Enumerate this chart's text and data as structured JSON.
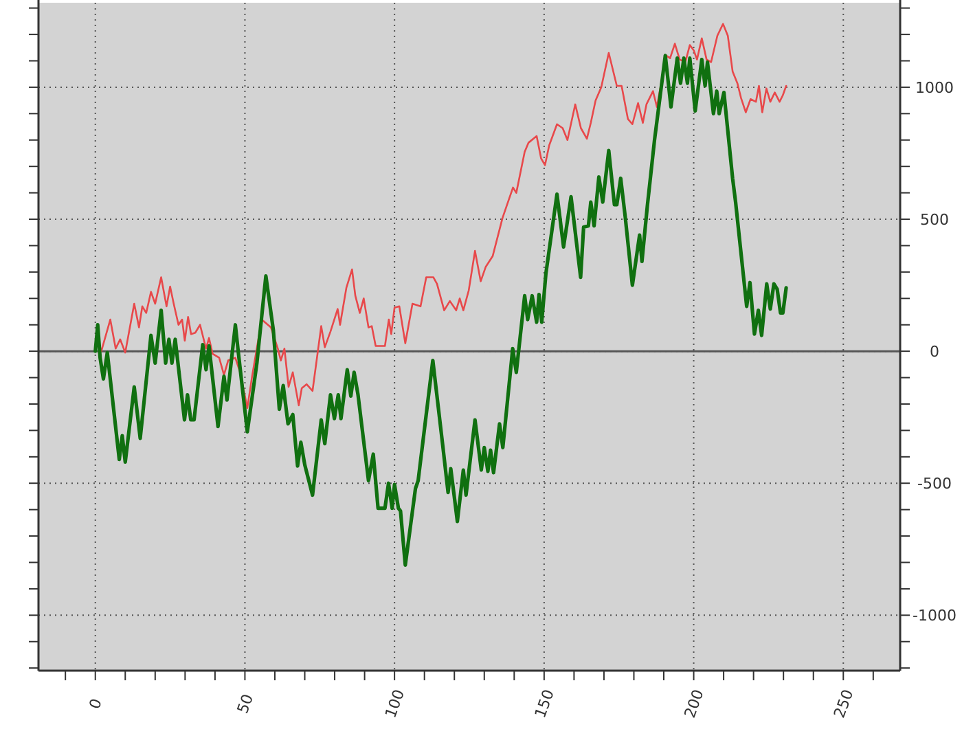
{
  "chart_data": {
    "type": "line",
    "xlim": [
      -19,
      269
    ],
    "ylim": [
      -1210,
      1320
    ],
    "xticks": [
      {
        "value": -10,
        "label": null
      },
      0,
      {
        "value": 10,
        "label": null
      },
      {
        "value": 20,
        "label": null
      },
      {
        "value": 30,
        "label": null
      },
      {
        "value": 40,
        "label": null
      },
      50,
      {
        "value": 60,
        "label": null
      },
      {
        "value": 70,
        "label": null
      },
      {
        "value": 80,
        "label": null
      },
      {
        "value": 90,
        "label": null
      },
      100,
      {
        "value": 110,
        "label": null
      },
      {
        "value": 120,
        "label": null
      },
      {
        "value": 130,
        "label": null
      },
      {
        "value": 140,
        "label": null
      },
      150,
      {
        "value": 160,
        "label": null
      },
      {
        "value": 170,
        "label": null
      },
      {
        "value": 180,
        "label": null
      },
      {
        "value": 190,
        "label": null
      },
      200,
      {
        "value": 210,
        "label": null
      },
      {
        "value": 220,
        "label": null
      },
      {
        "value": 230,
        "label": null
      },
      {
        "value": 240,
        "label": null
      },
      250,
      {
        "value": 260,
        "label": null
      }
    ],
    "yticks": [
      {
        "value": -1200,
        "label": null
      },
      {
        "value": -1100,
        "label": null
      },
      -1000,
      {
        "value": -900,
        "label": null
      },
      {
        "value": -800,
        "label": null
      },
      {
        "value": -700,
        "label": null
      },
      {
        "value": -600,
        "label": null
      },
      -500,
      {
        "value": -400,
        "label": null
      },
      {
        "value": -300,
        "label": null
      },
      {
        "value": -200,
        "label": null
      },
      {
        "value": -100,
        "label": null
      },
      0,
      {
        "value": 100,
        "label": null
      },
      {
        "value": 200,
        "label": null
      },
      {
        "value": 300,
        "label": null
      },
      {
        "value": 400,
        "label": null
      },
      500,
      {
        "value": 600,
        "label": null
      },
      {
        "value": 700,
        "label": null
      },
      {
        "value": 800,
        "label": null
      },
      {
        "value": 900,
        "label": null
      },
      1000,
      {
        "value": 1100,
        "label": null
      },
      {
        "value": 1200,
        "label": null
      },
      {
        "value": 1300,
        "label": null
      }
    ],
    "grid": true,
    "ref_lines": [
      {
        "axis": "y",
        "value": 0,
        "color": "#555555"
      }
    ],
    "series": [
      {
        "color": "#e8484a",
        "x": [
          0,
          0.8,
          2,
          5,
          6.8,
          8.3,
          10,
          13,
          14.6,
          15.7,
          17,
          18.6,
          20,
          22,
          23.8,
          25,
          26.2,
          27.8,
          29,
          29.9,
          31,
          32,
          33.4,
          35,
          37,
          38,
          39.2,
          41.4,
          43,
          44.4,
          46.8,
          48.4,
          50.8,
          52.4,
          55.6,
          58.7,
          61,
          62,
          63.2,
          64.6,
          66,
          68,
          69,
          70.6,
          72.6,
          75.5,
          76.7,
          78.6,
          81,
          81.8,
          83.9,
          85.8,
          86.9,
          88.4,
          89.7,
          91.3,
          92.4,
          93.7,
          96.8,
          98.1,
          98.9,
          100,
          101.6,
          103.6,
          106,
          108.7,
          110.6,
          113,
          114.2,
          116.6,
          118.5,
          120.6,
          121.8,
          123,
          124.8,
          126.9,
          128.8,
          130.5,
          132.8,
          136.1,
          139.6,
          140.7,
          143.5,
          144.8,
          147.5,
          149,
          150.3,
          151.7,
          154.3,
          156.2,
          157.8,
          160.4,
          162.3,
          164.3,
          165.6,
          167.2,
          169.1,
          171.6,
          174.3,
          175.9,
          178,
          179.5,
          181.4,
          183,
          184.2,
          186.4,
          187.7,
          190.8,
          192.1,
          193.7,
          195.3,
          197.2,
          198.7,
          200,
          201.1,
          202.7,
          204.3,
          205.8,
          207.9,
          209.8,
          211.4,
          213,
          214.6,
          215.8,
          217.4,
          219,
          220.8,
          221.8,
          222.9,
          224.3,
          225.6,
          227.1,
          228.7,
          229.8,
          230.9
        ],
        "values": [
          0,
          45,
          0,
          120,
          10,
          45,
          -5,
          180,
          90,
          170,
          145,
          225,
          180,
          280,
          170,
          245,
          180,
          100,
          120,
          40,
          130,
          65,
          70,
          100,
          10,
          50,
          -10,
          -25,
          -90,
          -35,
          -25,
          -80,
          -215,
          -95,
          120,
          90,
          10,
          -35,
          10,
          -135,
          -80,
          -205,
          -140,
          -125,
          -150,
          95,
          15,
          75,
          160,
          100,
          240,
          310,
          210,
          145,
          200,
          90,
          95,
          20,
          20,
          120,
          65,
          165,
          170,
          30,
          180,
          170,
          280,
          280,
          255,
          155,
          190,
          155,
          200,
          155,
          230,
          380,
          265,
          320,
          360,
          505,
          620,
          600,
          755,
          790,
          815,
          730,
          705,
          780,
          860,
          845,
          800,
          935,
          845,
          805,
          865,
          950,
          1000,
          1130,
          1005,
          1005,
          880,
          860,
          940,
          865,
          935,
          985,
          925,
          1120,
          1110,
          1165,
          1105,
          1095,
          1160,
          1140,
          1105,
          1185,
          1105,
          1095,
          1195,
          1240,
          1195,
          1060,
          1015,
          960,
          905,
          955,
          945,
          1005,
          905,
          995,
          945,
          980,
          945,
          970,
          1005
        ]
      },
      {
        "color": "#107010",
        "x": [
          0,
          0.8,
          1.6,
          2.7,
          4,
          8,
          9,
          10,
          13,
          15,
          18.6,
          20,
          22,
          23.5,
          24.6,
          25.6,
          26.7,
          29.8,
          30.8,
          31.9,
          33,
          35.9,
          37,
          38,
          41,
          43,
          44,
          46.8,
          47.8,
          50.8,
          54,
          57,
          59.5,
          61.5,
          62.8,
          64.4,
          66,
          67.6,
          68.7,
          70,
          72.6,
          75.5,
          76.7,
          78.6,
          79.9,
          81.2,
          82.1,
          84.2,
          85.4,
          86.5,
          87.8,
          91.3,
          92.9,
          94.5,
          96.8,
          98,
          99.2,
          100,
          101.3,
          102,
          103.6,
          107,
          107.9,
          112.8,
          116.1,
          117.9,
          118.8,
          119.8,
          121,
          123,
          123.9,
          126.9,
          129,
          130,
          131.2,
          132.1,
          133.1,
          135.1,
          136.2,
          139.5,
          140.7,
          143.5,
          144.5,
          146,
          147.5,
          148.3,
          149.2,
          150.6,
          154.3,
          156.5,
          159,
          162.2,
          163.2,
          164.8,
          165.6,
          166.7,
          168.3,
          169.6,
          171.6,
          173.5,
          174.3,
          175.6,
          177.1,
          179.5,
          181.9,
          182.7,
          184.5,
          186.9,
          190.5,
          192.4,
          194.5,
          195.6,
          196.7,
          197.9,
          198.7,
          200.5,
          202.7,
          203.8,
          204.6,
          206.6,
          207.7,
          208.5,
          210.1,
          213,
          214,
          217.7,
          218.8,
          220.3,
          221.6,
          222.7,
          224.4,
          225.6,
          226.8,
          227.9,
          229,
          229.8,
          230.9
        ],
        "values": [
          0,
          100,
          -25,
          -105,
          -5,
          -410,
          -320,
          -420,
          -135,
          -330,
          60,
          -45,
          155,
          -45,
          45,
          -45,
          45,
          -260,
          -165,
          -260,
          -260,
          25,
          -70,
          20,
          -285,
          -95,
          -185,
          100,
          -5,
          -305,
          -45,
          285,
          80,
          -220,
          -130,
          -275,
          -240,
          -435,
          -345,
          -430,
          -545,
          -260,
          -350,
          -165,
          -255,
          -165,
          -255,
          -70,
          -170,
          -80,
          -165,
          -490,
          -390,
          -595,
          -595,
          -500,
          -595,
          -505,
          -595,
          -605,
          -810,
          -520,
          -490,
          -35,
          -355,
          -535,
          -445,
          -535,
          -645,
          -450,
          -545,
          -260,
          -450,
          -365,
          -455,
          -375,
          -460,
          -275,
          -365,
          10,
          -80,
          210,
          120,
          210,
          110,
          215,
          110,
          295,
          595,
          395,
          585,
          280,
          470,
          475,
          565,
          475,
          660,
          565,
          760,
          555,
          555,
          655,
          510,
          250,
          440,
          340,
          550,
          800,
          1120,
          925,
          1110,
          1015,
          1110,
          1015,
          1110,
          910,
          1105,
          1005,
          1095,
          900,
          985,
          900,
          980,
          655,
          565,
          170,
          260,
          65,
          155,
          60,
          255,
          160,
          255,
          235,
          145,
          145,
          240
        ]
      }
    ]
  }
}
